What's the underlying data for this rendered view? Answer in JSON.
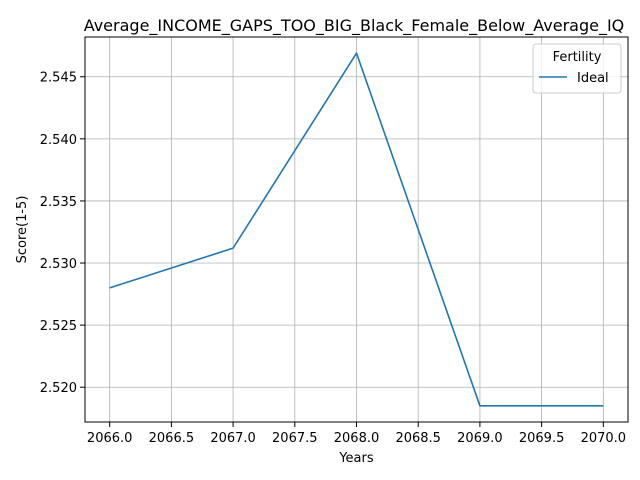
{
  "chart_data": {
    "type": "line",
    "title": "Average_INCOME_GAPS_TOO_BIG_Black_Female_Below_Average_IQ",
    "xlabel": "Years",
    "ylabel": "Score(1-5)",
    "xlim": [
      2065.8,
      2070.2
    ],
    "ylim": [
      2.5172,
      2.5482
    ],
    "xticks": [
      "2066.0",
      "2066.5",
      "2067.0",
      "2067.5",
      "2068.0",
      "2068.5",
      "2069.0",
      "2069.5",
      "2070.0"
    ],
    "yticks": [
      "2.520",
      "2.525",
      "2.530",
      "2.535",
      "2.540",
      "2.545"
    ],
    "grid": true,
    "legend": {
      "title": "Fertility",
      "placement": "top-right"
    },
    "series": [
      {
        "name": "Ideal",
        "color": "#1f77b4",
        "x": [
          2066,
          2067,
          2068,
          2069,
          2070
        ],
        "y": [
          2.528,
          2.5312,
          2.5469,
          2.5185,
          2.5185
        ]
      }
    ]
  }
}
